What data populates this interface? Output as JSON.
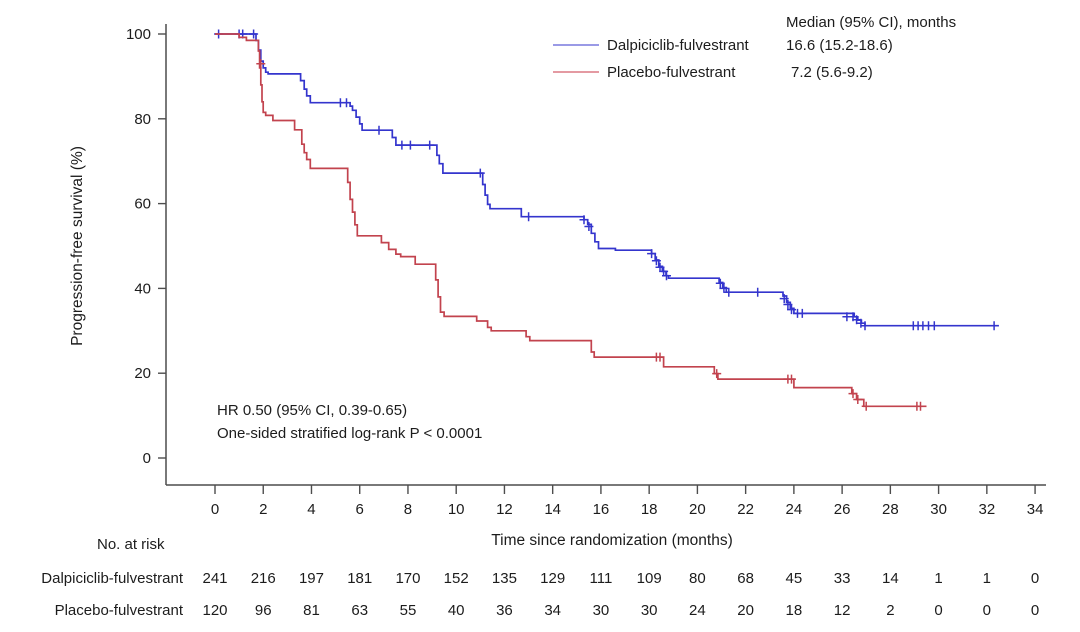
{
  "chart_data": {
    "type": "line",
    "subtype": "kaplan-meier-step",
    "xlabel": "Time since randomization (months)",
    "ylabel": "Progression-free survival (%)",
    "xlim": [
      0,
      34
    ],
    "ylim": [
      0,
      100
    ],
    "grid": false,
    "legend_position": "top-right",
    "x_ticks": [
      0,
      2,
      4,
      6,
      8,
      10,
      12,
      14,
      16,
      18,
      20,
      22,
      24,
      26,
      28,
      30,
      32,
      34
    ],
    "y_ticks": [
      0,
      20,
      40,
      60,
      80,
      100
    ],
    "legend": {
      "header": "Median (95% CI), months"
    },
    "annotation": [
      "HR 0.50 (95% CI, 0.39-0.65)",
      "One-sided stratified log-rank P < 0.0001"
    ],
    "series": [
      {
        "name": "Dalpiciclib-fulvestrant",
        "median": "16.6 (15.2-18.6)",
        "color": "#3435cd",
        "legend_color": "#9a9ae6",
        "steps": [
          [
            0,
            100
          ],
          [
            1.7,
            98.5
          ],
          [
            1.8,
            96.2
          ],
          [
            1.9,
            93.6
          ],
          [
            2.0,
            92.0
          ],
          [
            2.1,
            91.0
          ],
          [
            2.2,
            90.6
          ],
          [
            3.55,
            89.0
          ],
          [
            3.7,
            87.0
          ],
          [
            3.8,
            85.4
          ],
          [
            3.95,
            83.8
          ],
          [
            5.6,
            83.0
          ],
          [
            5.7,
            82.0
          ],
          [
            5.85,
            80.4
          ],
          [
            6.0,
            78.8
          ],
          [
            6.1,
            77.3
          ],
          [
            7.35,
            75.6
          ],
          [
            7.5,
            73.8
          ],
          [
            9.2,
            71.4
          ],
          [
            9.3,
            69.4
          ],
          [
            9.45,
            67.2
          ],
          [
            11.1,
            64.5
          ],
          [
            11.2,
            62.0
          ],
          [
            11.3,
            59.8
          ],
          [
            11.4,
            58.8
          ],
          [
            12.7,
            56.9
          ],
          [
            15.3,
            56.2
          ],
          [
            15.45,
            55.1
          ],
          [
            15.6,
            53.0
          ],
          [
            15.75,
            51.0
          ],
          [
            15.9,
            49.4
          ],
          [
            16.6,
            49.0
          ],
          [
            18.1,
            48.2
          ],
          [
            18.25,
            46.7
          ],
          [
            18.4,
            45.2
          ],
          [
            18.55,
            44.0
          ],
          [
            18.7,
            43.0
          ],
          [
            18.8,
            42.4
          ],
          [
            20.9,
            41.4
          ],
          [
            21.05,
            40.2
          ],
          [
            21.2,
            39.1
          ],
          [
            23.55,
            38.2
          ],
          [
            23.7,
            36.7
          ],
          [
            23.85,
            35.3
          ],
          [
            24.0,
            34.1
          ],
          [
            26.5,
            33.3
          ],
          [
            26.65,
            32.5
          ],
          [
            26.8,
            31.8
          ],
          [
            26.95,
            31.2
          ],
          [
            32.5,
            31.2
          ]
        ],
        "censors": [
          [
            0.15,
            100
          ],
          [
            1.0,
            100
          ],
          [
            1.15,
            100
          ],
          [
            1.6,
            100
          ],
          [
            5.2,
            83.8
          ],
          [
            5.45,
            83.8
          ],
          [
            6.8,
            77.3
          ],
          [
            7.75,
            73.8
          ],
          [
            8.1,
            73.8
          ],
          [
            8.9,
            73.8
          ],
          [
            11.0,
            67.2
          ],
          [
            13.0,
            56.9
          ],
          [
            15.3,
            56.2
          ],
          [
            15.5,
            54.6
          ],
          [
            18.1,
            48.2
          ],
          [
            18.3,
            46.5
          ],
          [
            18.45,
            45.0
          ],
          [
            18.6,
            44.0
          ],
          [
            18.72,
            43.0
          ],
          [
            20.95,
            41.2
          ],
          [
            21.1,
            40.0
          ],
          [
            21.3,
            39.1
          ],
          [
            22.5,
            39.1
          ],
          [
            23.6,
            37.6
          ],
          [
            23.75,
            36.2
          ],
          [
            23.9,
            35.0
          ],
          [
            24.15,
            34.1
          ],
          [
            24.35,
            34.1
          ],
          [
            26.2,
            33.3
          ],
          [
            26.45,
            33.3
          ],
          [
            26.6,
            32.6
          ],
          [
            26.78,
            31.8
          ],
          [
            26.95,
            31.2
          ],
          [
            28.95,
            31.2
          ],
          [
            29.15,
            31.2
          ],
          [
            29.35,
            31.2
          ],
          [
            29.58,
            31.2
          ],
          [
            29.82,
            31.2
          ],
          [
            32.3,
            31.2
          ]
        ]
      },
      {
        "name": "Placebo-fulvestrant",
        "median": "7.2 (5.6-9.2)",
        "color": "#c2434e",
        "legend_color": "#e49aa2",
        "steps": [
          [
            0,
            100
          ],
          [
            1.0,
            99.2
          ],
          [
            1.3,
            98.5
          ],
          [
            1.8,
            96.0
          ],
          [
            1.85,
            92.0
          ],
          [
            1.9,
            88.0
          ],
          [
            1.95,
            84.0
          ],
          [
            2.0,
            81.5
          ],
          [
            2.1,
            80.8
          ],
          [
            2.4,
            79.6
          ],
          [
            3.3,
            77.4
          ],
          [
            3.6,
            74.0
          ],
          [
            3.7,
            72.0
          ],
          [
            3.8,
            70.4
          ],
          [
            3.95,
            68.3
          ],
          [
            5.5,
            65.0
          ],
          [
            5.6,
            61.0
          ],
          [
            5.7,
            58.0
          ],
          [
            5.8,
            55.0
          ],
          [
            5.9,
            52.4
          ],
          [
            6.9,
            50.8
          ],
          [
            7.2,
            49.2
          ],
          [
            7.5,
            48.1
          ],
          [
            7.7,
            47.5
          ],
          [
            8.3,
            45.7
          ],
          [
            9.15,
            42.0
          ],
          [
            9.25,
            38.0
          ],
          [
            9.35,
            34.4
          ],
          [
            9.5,
            33.4
          ],
          [
            10.85,
            32.3
          ],
          [
            11.3,
            30.8
          ],
          [
            11.45,
            30.0
          ],
          [
            12.9,
            28.6
          ],
          [
            13.05,
            27.7
          ],
          [
            15.6,
            25.0
          ],
          [
            15.72,
            23.8
          ],
          [
            18.6,
            21.5
          ],
          [
            20.7,
            19.9
          ],
          [
            20.85,
            18.6
          ],
          [
            24.0,
            16.6
          ],
          [
            26.4,
            15.2
          ],
          [
            26.6,
            13.8
          ],
          [
            26.9,
            12.2
          ],
          [
            29.5,
            12.2
          ]
        ],
        "censors": [
          [
            1.9,
            93.0
          ],
          [
            18.3,
            23.8
          ],
          [
            18.45,
            23.8
          ],
          [
            20.8,
            19.9
          ],
          [
            23.75,
            18.6
          ],
          [
            23.9,
            18.6
          ],
          [
            26.45,
            15.2
          ],
          [
            26.65,
            13.8
          ],
          [
            27.0,
            12.2
          ],
          [
            29.1,
            12.2
          ],
          [
            29.25,
            12.2
          ]
        ]
      }
    ],
    "at_risk": {
      "title": "No. at risk",
      "times": [
        0,
        2,
        4,
        6,
        8,
        10,
        12,
        14,
        16,
        18,
        20,
        22,
        24,
        26,
        28,
        30,
        32,
        34
      ],
      "rows": [
        {
          "label": "Dalpiciclib-fulvestrant",
          "counts": [
            241,
            216,
            197,
            181,
            170,
            152,
            135,
            129,
            111,
            109,
            80,
            68,
            45,
            33,
            14,
            1,
            1,
            0
          ]
        },
        {
          "label": "Placebo-fulvestrant",
          "counts": [
            120,
            96,
            81,
            63,
            55,
            40,
            36,
            34,
            30,
            30,
            24,
            20,
            18,
            12,
            2,
            0,
            0,
            0
          ]
        }
      ]
    }
  }
}
